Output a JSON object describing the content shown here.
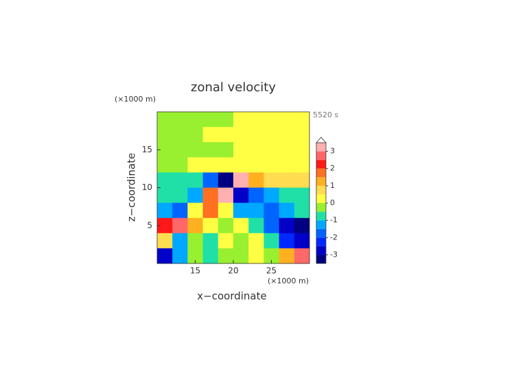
{
  "chart_data": {
    "type": "contour",
    "title": "zonal velocity",
    "y_unit": "(×1000 m)",
    "x_unit": "(×1000 m)",
    "time_label": "5520 s",
    "xlabel": "x−coordinate",
    "ylabel": "z−coordinate",
    "xlim": [
      10,
      30
    ],
    "ylim": [
      0,
      20
    ],
    "xticks": [
      15,
      20,
      25
    ],
    "yticks": [
      5,
      10,
      15
    ],
    "x": [
      11,
      13,
      15,
      17,
      19,
      21,
      23,
      25,
      27,
      29
    ],
    "y": [
      19,
      17,
      15,
      13,
      11,
      9,
      7,
      5,
      3,
      1
    ],
    "z": [
      [
        -0.2,
        -0.2,
        -0.2,
        -0.2,
        -0.2,
        0.3,
        0.3,
        0.3,
        0.3,
        0.3
      ],
      [
        -0.2,
        -0.2,
        -0.2,
        0.2,
        0.2,
        0.3,
        0.3,
        0.3,
        0.3,
        0.3
      ],
      [
        -0.2,
        -0.2,
        -0.2,
        -0.2,
        -0.2,
        0.3,
        0.3,
        0.3,
        0.3,
        0.3
      ],
      [
        -0.2,
        -0.2,
        0.2,
        0.2,
        0.2,
        0.3,
        0.3,
        0.3,
        0.3,
        0.3
      ],
      [
        -0.7,
        -0.7,
        -0.7,
        -2,
        -3.2,
        3.2,
        1.2,
        0.7,
        0.7,
        0.7
      ],
      [
        -0.7,
        -0.7,
        -1.2,
        1.5,
        3,
        -3,
        -1.8,
        -1.2,
        -0.7,
        -0.7
      ],
      [
        -1.5,
        -1.8,
        0.3,
        1.8,
        0.3,
        -1.2,
        -1.5,
        -2,
        -1.2,
        -0.7
      ],
      [
        2.2,
        2.8,
        1.2,
        0.3,
        -0.3,
        0.3,
        -0.7,
        -1.8,
        -3,
        -3.2
      ],
      [
        0.6,
        -1.2,
        -0.3,
        -0.8,
        0.3,
        -0.3,
        0.3,
        -0.6,
        -2.2,
        -3
      ],
      [
        -3,
        -1.5,
        -0.3,
        -0.7,
        -0.3,
        -0.3,
        0.3,
        -0.3,
        1.2,
        2.5
      ]
    ],
    "levels": [
      -3.5,
      -3,
      -2.5,
      -2,
      -1.5,
      -1,
      -0.5,
      0,
      0.5,
      1,
      1.5,
      2,
      2.5,
      3,
      3.5
    ],
    "colors": [
      "#000080",
      "#0000c8",
      "#0028ff",
      "#0064ff",
      "#00a8ff",
      "#20e0a8",
      "#98f030",
      "#ffff44",
      "#ffdc50",
      "#ffb020",
      "#ff7020",
      "#ff1818",
      "#ff6868",
      "#ffb0b0"
    ],
    "colorbar_ticks": [
      -3,
      -2,
      -1,
      0,
      1,
      2,
      3
    ]
  }
}
